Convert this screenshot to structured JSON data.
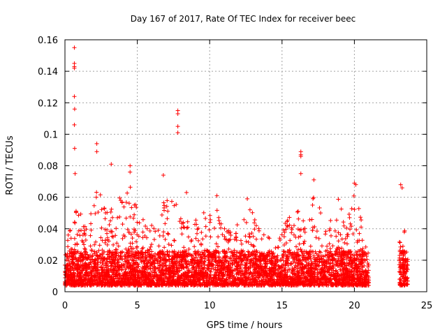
{
  "chart_data": {
    "type": "scatter",
    "title": "Day 167 of 2017, Rate Of TEC Index for receiver beec",
    "xlabel": "GPS time / hours",
    "ylabel": "ROTI / TECUs",
    "xlim": [
      0,
      25
    ],
    "ylim": [
      0,
      0.16
    ],
    "xticks": [
      0,
      5,
      10,
      15,
      20,
      25
    ],
    "yticks": [
      0,
      0.02,
      0.04,
      0.06,
      0.08,
      0.1,
      0.12,
      0.14,
      0.16
    ],
    "xtick_labels": [
      "0",
      "5",
      "10",
      "15",
      "20",
      "25"
    ],
    "ytick_labels": [
      "0",
      "0.02",
      "0.04",
      "0.06",
      "0.08",
      "0.1",
      "0.12",
      "0.14",
      "0.16"
    ],
    "grid": true,
    "marker": "+",
    "color": "#ff0000",
    "data_gaps_hours": [
      [
        21.0,
        23.1
      ]
    ],
    "notable_points": [
      {
        "x": 0.65,
        "y": 0.155
      },
      {
        "x": 0.65,
        "y": 0.145
      },
      {
        "x": 0.65,
        "y": 0.143
      },
      {
        "x": 0.65,
        "y": 0.142
      },
      {
        "x": 0.65,
        "y": 0.124
      },
      {
        "x": 0.67,
        "y": 0.116
      },
      {
        "x": 0.65,
        "y": 0.106
      },
      {
        "x": 0.67,
        "y": 0.091
      },
      {
        "x": 0.7,
        "y": 0.075
      },
      {
        "x": 2.2,
        "y": 0.094
      },
      {
        "x": 2.2,
        "y": 0.089
      },
      {
        "x": 3.2,
        "y": 0.081
      },
      {
        "x": 4.5,
        "y": 0.08
      },
      {
        "x": 4.5,
        "y": 0.076
      },
      {
        "x": 6.8,
        "y": 0.074
      },
      {
        "x": 7.8,
        "y": 0.115
      },
      {
        "x": 7.8,
        "y": 0.113
      },
      {
        "x": 7.8,
        "y": 0.105
      },
      {
        "x": 7.8,
        "y": 0.101
      },
      {
        "x": 8.4,
        "y": 0.063
      },
      {
        "x": 10.5,
        "y": 0.061
      },
      {
        "x": 12.6,
        "y": 0.059
      },
      {
        "x": 16.3,
        "y": 0.089
      },
      {
        "x": 16.3,
        "y": 0.087
      },
      {
        "x": 16.3,
        "y": 0.086
      },
      {
        "x": 16.3,
        "y": 0.075
      },
      {
        "x": 17.2,
        "y": 0.071
      },
      {
        "x": 20.0,
        "y": 0.069
      },
      {
        "x": 20.1,
        "y": 0.068
      },
      {
        "x": 23.2,
        "y": 0.068
      },
      {
        "x": 23.3,
        "y": 0.066
      }
    ],
    "envelope": [
      {
        "x": 0.0,
        "ymin": 0.004,
        "ymax": 0.03
      },
      {
        "x": 0.5,
        "ymin": 0.004,
        "ymax": 0.045
      },
      {
        "x": 0.8,
        "ymin": 0.004,
        "ymax": 0.06
      },
      {
        "x": 1.5,
        "ymin": 0.004,
        "ymax": 0.04
      },
      {
        "x": 2.2,
        "ymin": 0.004,
        "ymax": 0.07
      },
      {
        "x": 3.0,
        "ymin": 0.004,
        "ymax": 0.05
      },
      {
        "x": 3.5,
        "ymin": 0.004,
        "ymax": 0.066
      },
      {
        "x": 4.5,
        "ymin": 0.004,
        "ymax": 0.07
      },
      {
        "x": 5.5,
        "ymin": 0.004,
        "ymax": 0.045
      },
      {
        "x": 6.5,
        "ymin": 0.004,
        "ymax": 0.04
      },
      {
        "x": 7.0,
        "ymin": 0.004,
        "ymax": 0.067
      },
      {
        "x": 7.8,
        "ymin": 0.004,
        "ymax": 0.055
      },
      {
        "x": 8.5,
        "ymin": 0.004,
        "ymax": 0.045
      },
      {
        "x": 9.5,
        "ymin": 0.004,
        "ymax": 0.05
      },
      {
        "x": 10.5,
        "ymin": 0.004,
        "ymax": 0.052
      },
      {
        "x": 11.5,
        "ymin": 0.004,
        "ymax": 0.04
      },
      {
        "x": 12.6,
        "ymin": 0.004,
        "ymax": 0.058
      },
      {
        "x": 13.5,
        "ymin": 0.004,
        "ymax": 0.04
      },
      {
        "x": 14.5,
        "ymin": 0.004,
        "ymax": 0.035
      },
      {
        "x": 15.2,
        "ymin": 0.004,
        "ymax": 0.045
      },
      {
        "x": 16.0,
        "ymin": 0.004,
        "ymax": 0.055
      },
      {
        "x": 16.5,
        "ymin": 0.004,
        "ymax": 0.05
      },
      {
        "x": 17.3,
        "ymin": 0.004,
        "ymax": 0.063
      },
      {
        "x": 18.0,
        "ymin": 0.004,
        "ymax": 0.04
      },
      {
        "x": 18.9,
        "ymin": 0.004,
        "ymax": 0.062
      },
      {
        "x": 19.5,
        "ymin": 0.004,
        "ymax": 0.045
      },
      {
        "x": 20.0,
        "ymin": 0.004,
        "ymax": 0.067
      },
      {
        "x": 20.5,
        "ymin": 0.004,
        "ymax": 0.045
      },
      {
        "x": 21.0,
        "ymin": 0.004,
        "ymax": 0.025
      },
      {
        "x": 23.1,
        "ymin": 0.004,
        "ymax": 0.04
      },
      {
        "x": 23.3,
        "ymin": 0.004,
        "ymax": 0.068
      },
      {
        "x": 23.5,
        "ymin": 0.004,
        "ymax": 0.035
      },
      {
        "x": 23.7,
        "ymin": 0.004,
        "ymax": 0.025
      }
    ]
  }
}
